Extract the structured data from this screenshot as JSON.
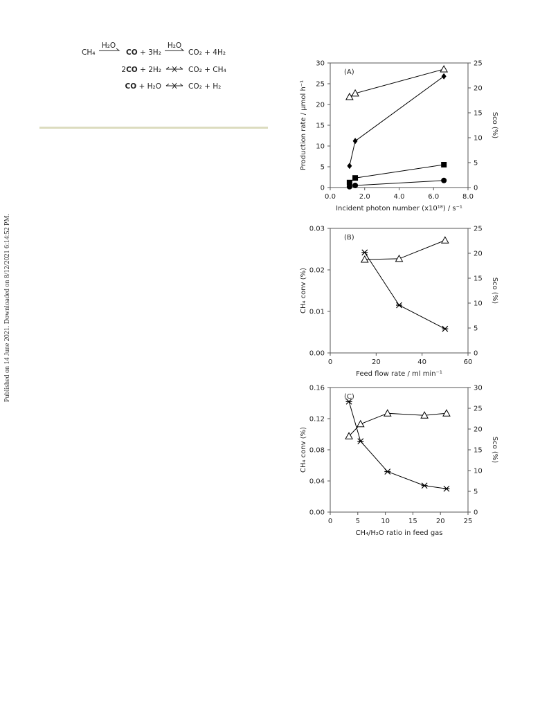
{
  "side_note": "Published on 14 June 2021. Downloaded on 8/12/2021 6:14:52 PM.",
  "equations": [
    {
      "reactant": "CH₄",
      "over1": "H₂O",
      "bold1": "CO",
      "rest1": "+ 3H₂",
      "over2": "H₂O",
      "product": "CO₂ + 4H₂"
    },
    {
      "coef": "2",
      "bold": "CO",
      "rest": "+ 2H₂",
      "product": "CO₂ + CH₄"
    },
    {
      "bold": "CO",
      "rest": "+ H₂O",
      "product": "CO₂ + H₂"
    }
  ],
  "chart_data": [
    {
      "type": "line",
      "panel_label": "(A)",
      "xlabel": "Incident photon number (x10¹⁸) / s⁻¹",
      "ylabel": "Production rate / μmol h⁻¹",
      "y2label": "Sco (%)",
      "xlim": [
        0,
        8
      ],
      "xticks": [
        {
          "value": 0,
          "label": "0.0"
        },
        {
          "value": 2,
          "label": "2.0"
        },
        {
          "value": 4,
          "label": "4.0"
        },
        {
          "value": 6,
          "label": "6.0"
        },
        {
          "value": 8,
          "label": "8.0"
        }
      ],
      "ylim": [
        0,
        30
      ],
      "yticks": [
        0,
        5,
        10,
        15,
        20,
        25,
        30
      ],
      "y2lim": [
        0,
        25
      ],
      "y2ticks": [
        0,
        5,
        10,
        15,
        20,
        25
      ],
      "series": [
        {
          "marker": "triangle-open",
          "color": "#000000",
          "axis": "y2",
          "x": [
            1.12,
            1.45,
            6.6
          ],
          "values": [
            18.2,
            18.9,
            23.75
          ]
        },
        {
          "marker": "diamond",
          "color": "#000000",
          "axis": "y",
          "x": [
            1.12,
            1.45,
            6.6
          ],
          "values": [
            5.2,
            11.2,
            26.8
          ]
        },
        {
          "marker": "square",
          "color": "#000000",
          "axis": "y",
          "x": [
            1.12,
            1.45,
            6.6
          ],
          "values": [
            1.2,
            2.3,
            5.5
          ]
        },
        {
          "marker": "circle",
          "color": "#000000",
          "axis": "y",
          "x": [
            1.12,
            1.45,
            6.6
          ],
          "values": [
            0.2,
            0.5,
            1.7
          ]
        }
      ]
    },
    {
      "type": "line",
      "panel_label": "(B)",
      "xlabel": "Feed flow rate / ml min⁻¹",
      "ylabel": "CH₄ conv (%)",
      "y2label": "Sco (%)",
      "xlim": [
        0,
        60
      ],
      "xticks": [
        0,
        20,
        40,
        60
      ],
      "ylim": [
        0,
        0.03
      ],
      "yticks": [
        {
          "value": 0,
          "label": "0.00"
        },
        {
          "value": 0.01,
          "label": "0.01"
        },
        {
          "value": 0.02,
          "label": "0.02"
        },
        {
          "value": 0.03,
          "label": "0.03"
        }
      ],
      "y2lim": [
        0,
        25
      ],
      "y2ticks": [
        0,
        5,
        10,
        15,
        20,
        25
      ],
      "series": [
        {
          "marker": "triangle-open",
          "color": "#000000",
          "axis": "y2",
          "x": [
            15,
            30,
            50
          ],
          "values": [
            18.75,
            18.9,
            22.6
          ]
        },
        {
          "marker": "asterisk",
          "color": "#000000",
          "axis": "y",
          "x": [
            15,
            30,
            50
          ],
          "values": [
            0.0242,
            0.0115,
            0.0058
          ]
        }
      ]
    },
    {
      "type": "line",
      "panel_label": "(C)",
      "xlabel": "CH₄/H₂O ratio in feed gas",
      "ylabel": "CH₄ conv (%)",
      "y2label": "Sco (%)",
      "xlim": [
        0,
        25
      ],
      "xticks": [
        0,
        5,
        10,
        15,
        20,
        25
      ],
      "ylim": [
        0,
        0.16
      ],
      "yticks": [
        {
          "value": 0,
          "label": "0.00"
        },
        {
          "value": 0.04,
          "label": "0.04"
        },
        {
          "value": 0.08,
          "label": "0.08"
        },
        {
          "value": 0.12,
          "label": "0.12"
        },
        {
          "value": 0.16,
          "label": "0.16"
        }
      ],
      "y2lim": [
        0,
        30
      ],
      "y2ticks": [
        0,
        5,
        10,
        15,
        20,
        25,
        30
      ],
      "series": [
        {
          "marker": "triangle-open",
          "color": "#000000",
          "axis": "y2",
          "x": [
            3.4,
            5.5,
            10.4,
            17.1,
            21.1
          ],
          "values": [
            18.3,
            21.2,
            23.8,
            23.3,
            23.8
          ]
        },
        {
          "marker": "asterisk",
          "color": "#000000",
          "axis": "y",
          "x": [
            3.4,
            5.5,
            10.4,
            17.1,
            21.1
          ],
          "values": [
            0.142,
            0.091,
            0.052,
            0.034,
            0.03
          ]
        }
      ]
    }
  ]
}
